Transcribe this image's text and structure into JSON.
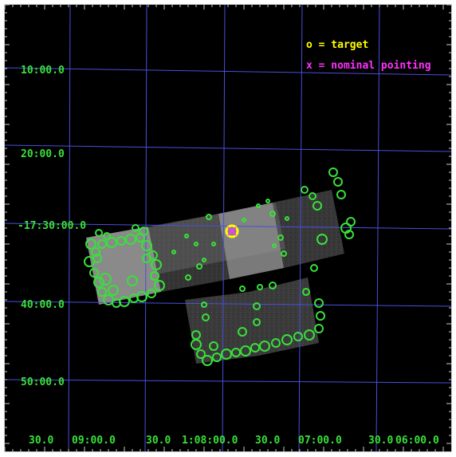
{
  "legend": {
    "target": "o = target",
    "nominal": "x = nominal pointing"
  },
  "colors": {
    "background": "#000000",
    "grid": "#4a4fdc",
    "labels": "#39e03a",
    "sources": "#39e03a",
    "target": "#ffff00",
    "nominal": "#ff33ff"
  },
  "dec_labels": [
    "10:00.0",
    "20:00.0",
    "-17:30:00.0",
    "40:00.0",
    "50:00.0"
  ],
  "ra_labels": [
    "30.0",
    "09:00.0",
    "30.0",
    "1:08:00.0",
    "30.0",
    "07:00.0",
    "30.0",
    "06:00.0"
  ]
}
